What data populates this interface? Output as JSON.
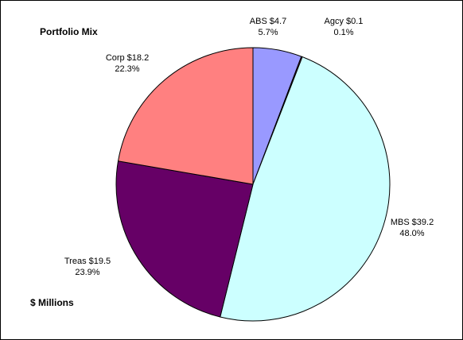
{
  "chart_data": {
    "type": "pie",
    "title": "Portfolio Mix",
    "subtitle": "$ Millions",
    "categories": [
      "ABS",
      "Agcy",
      "MBS",
      "Treas",
      "Corp"
    ],
    "values": [
      4.7,
      0.1,
      39.2,
      19.5,
      18.2
    ],
    "value_labels": [
      "$4.7",
      "$0.1",
      "$39.2",
      "$19.5",
      "$18.2"
    ],
    "percents": [
      5.7,
      0.1,
      48.0,
      23.9,
      22.3
    ],
    "percent_labels": [
      "5.7%",
      "0.1%",
      "48.0%",
      "23.9%",
      "22.3%"
    ],
    "colors": [
      "#9999ff",
      "#993366",
      "#ccffff",
      "#660066",
      "#ff8080"
    ]
  }
}
